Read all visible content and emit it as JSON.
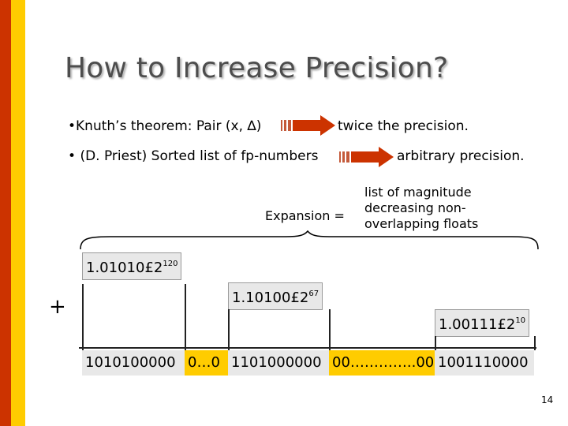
{
  "slide": {
    "title": "How to Increase Precision?",
    "bullet1": {
      "text": "Knuth’s theorem: Pair (x, ∆)",
      "result": "twice the precision."
    },
    "bullet2": {
      "text": "(D. Priest) Sorted list of fp-numbers",
      "result": "arbitrary precision."
    },
    "expansion": {
      "label": "Expansion =",
      "definition_line1": "list of magnitude",
      "definition_line2": "decreasing non-",
      "definition_line3": "overlapping floats"
    },
    "plus_sign": "+",
    "numbers": [
      {
        "mantissa": "1.01010",
        "mult": "£",
        "base": "2",
        "exp": "120"
      },
      {
        "mantissa": "1.10100",
        "mult": "£",
        "base": "2",
        "exp": "67"
      },
      {
        "mantissa": "1.00111",
        "mult": "£",
        "base": "2",
        "exp": "10"
      }
    ],
    "result_row": [
      "1010100000",
      "0…0",
      "1101000000",
      "00…………..00",
      "1001110000"
    ],
    "page_number": "14",
    "colors": {
      "left_bar": "#cc3300",
      "accent_bar": "#ffcc00",
      "arrow": "#cc3300",
      "box": "#e8e8e8"
    }
  }
}
